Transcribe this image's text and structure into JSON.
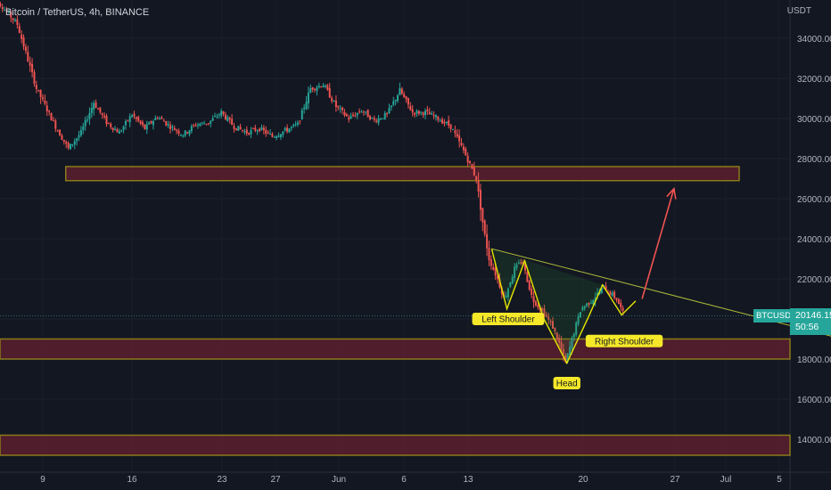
{
  "header": {
    "title": "Bitcoin / TetherUS, 4h, BINANCE"
  },
  "axis": {
    "unit": "USDT"
  },
  "price_tag": {
    "symbol": "BTCUSDT",
    "price": "20146.15",
    "countdown": "50:56"
  },
  "colors": {
    "background": "#131722",
    "up": "#26a69a",
    "down": "#ef5350",
    "zone_fill": "#5c1f2e",
    "zone_border": "#8a7a1a",
    "pattern": "#e6e600",
    "trend": "#a9b93a",
    "arrow": "#ef5350",
    "label_bg": "#f5e829",
    "axis_text": "#b2b5be"
  },
  "chart_data": {
    "type": "candlestick",
    "title": "Bitcoin / TetherUS, 4h, BINANCE",
    "ylabel": "USDT",
    "ylim": [
      13000,
      36000
    ],
    "y_ticks": [
      14000,
      16000,
      18000,
      20000,
      22000,
      24000,
      26000,
      28000,
      30000,
      32000,
      34000
    ],
    "y_tick_labels": [
      "14000.00",
      "16000.00",
      "18000.00",
      "20000.00",
      "22000.00",
      "24000.00",
      "26000.00",
      "28000.00",
      "30000.00",
      "32000.00",
      "34000.00"
    ],
    "x_tick_labels": [
      "9",
      "16",
      "23",
      "27",
      "Jun",
      "6",
      "13",
      "20",
      "27",
      "Jul",
      "5"
    ],
    "grid": true,
    "price_path": [
      {
        "day": 5,
        "price": 36200
      },
      {
        "day": 7,
        "price": 34700
      },
      {
        "day": 8.5,
        "price": 31500
      },
      {
        "day": 10,
        "price": 29600
      },
      {
        "day": 11,
        "price": 28500
      },
      {
        "day": 12,
        "price": 29300
      },
      {
        "day": 13,
        "price": 30800
      },
      {
        "day": 14,
        "price": 29800
      },
      {
        "day": 15,
        "price": 29300
      },
      {
        "day": 16,
        "price": 30200
      },
      {
        "day": 17,
        "price": 29500
      },
      {
        "day": 18,
        "price": 30100
      },
      {
        "day": 19,
        "price": 29600
      },
      {
        "day": 20,
        "price": 29200
      },
      {
        "day": 21,
        "price": 29700
      },
      {
        "day": 22,
        "price": 29800
      },
      {
        "day": 23,
        "price": 30300
      },
      {
        "day": 24,
        "price": 29600
      },
      {
        "day": 25,
        "price": 29300
      },
      {
        "day": 26,
        "price": 29500
      },
      {
        "day": 27,
        "price": 29100
      },
      {
        "day": 28,
        "price": 29400
      },
      {
        "day": 29,
        "price": 29700
      },
      {
        "day": 30,
        "price": 31500
      },
      {
        "day": 31,
        "price": 31700
      },
      {
        "day": 32,
        "price": 30600
      },
      {
        "day": 33,
        "price": 30000
      },
      {
        "day": 34,
        "price": 30400
      },
      {
        "day": 35,
        "price": 29900
      },
      {
        "day": 36,
        "price": 30200
      },
      {
        "day": 37,
        "price": 31400
      },
      {
        "day": 38,
        "price": 30300
      },
      {
        "day": 39,
        "price": 30300
      },
      {
        "day": 40,
        "price": 30000
      },
      {
        "day": 41,
        "price": 29600
      },
      {
        "day": 42,
        "price": 28400
      },
      {
        "day": 43,
        "price": 27000
      },
      {
        "day": 43.6,
        "price": 24400
      },
      {
        "day": 44,
        "price": 23000
      },
      {
        "day": 44.6,
        "price": 22100
      },
      {
        "day": 45.2,
        "price": 21000
      },
      {
        "day": 46,
        "price": 22500
      },
      {
        "day": 46.6,
        "price": 22900
      },
      {
        "day": 47.4,
        "price": 21000
      },
      {
        "day": 48.2,
        "price": 20400
      },
      {
        "day": 49,
        "price": 19600
      },
      {
        "day": 49.6,
        "price": 18600
      },
      {
        "day": 50,
        "price": 17800
      },
      {
        "day": 50.6,
        "price": 19200
      },
      {
        "day": 51.2,
        "price": 20500
      },
      {
        "day": 52,
        "price": 20900
      },
      {
        "day": 53,
        "price": 21600
      },
      {
        "day": 54,
        "price": 21000
      },
      {
        "day": 54.6,
        "price": 20146
      }
    ],
    "zones": [
      {
        "from_day": 10.8,
        "to_day": 999,
        "to_label": "to right edge",
        "low": 26900,
        "high": 27600
      },
      {
        "from_day": 0,
        "to_day": 999,
        "low": 18000,
        "high": 19000
      },
      {
        "from_day": 0,
        "to_day": 999,
        "low": 13200,
        "high": 14200
      }
    ],
    "trendline": [
      {
        "day": 44.2,
        "price": 23500
      },
      {
        "day": 76,
        "price": 18300
      }
    ],
    "pattern": [
      {
        "day": 44.2,
        "price": 23500
      },
      {
        "day": 45.4,
        "price": 20500
      },
      {
        "day": 46.8,
        "price": 22900
      },
      {
        "day": 48.3,
        "price": 20000
      },
      {
        "day": 50.1,
        "price": 17800
      },
      {
        "day": 51.8,
        "price": 20100
      },
      {
        "day": 52.9,
        "price": 21700
      },
      {
        "day": 54.4,
        "price": 20200
      },
      {
        "day": 55.5,
        "price": 20900
      }
    ],
    "projection_arrow": [
      {
        "day": 56,
        "price": 21000
      },
      {
        "day": 58.5,
        "price": 26500
      }
    ],
    "annotations": [
      {
        "text": "Left Shoulder",
        "day": 45.5,
        "price": 20000
      },
      {
        "text": "Head",
        "day": 50.1,
        "price": 16800
      },
      {
        "text": "Right Shoulder",
        "day": 54.6,
        "price": 18900
      }
    ]
  }
}
